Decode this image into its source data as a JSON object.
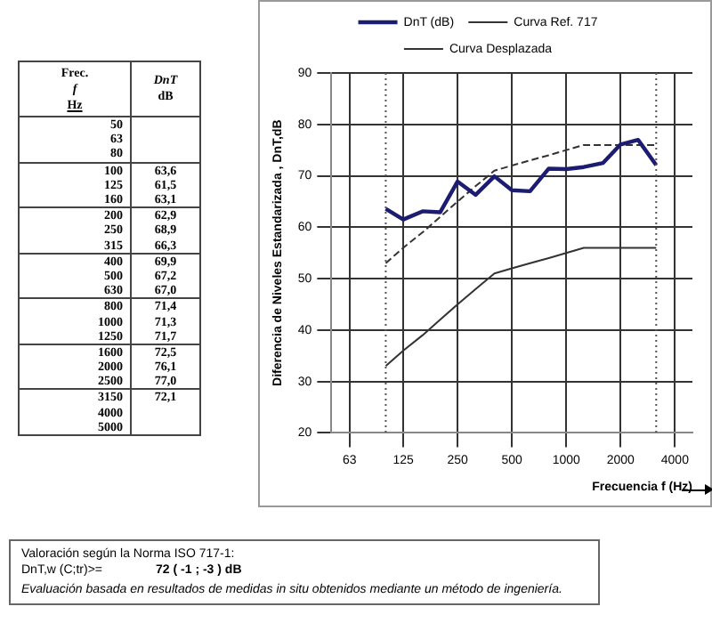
{
  "chart_data": [
    {
      "type": "other",
      "annotations": [
        "Frec.",
        "f",
        "Hz",
        "DnT",
        "dB"
      ],
      "categories": [
        "50",
        "63",
        "80",
        "100",
        "125",
        "160",
        "200",
        "250",
        "315",
        "400",
        "500",
        "630",
        "800",
        "1000",
        "1250",
        "1600",
        "2000",
        "2500",
        "3150",
        "4000",
        "5000"
      ],
      "value_labels": [
        null,
        null,
        null,
        "63,6",
        "61,5",
        "63,1",
        "62,9",
        "68,9",
        "66,3",
        "69,9",
        "67,2",
        "67,0",
        "71,4",
        "71,3",
        "71,7",
        "72,5",
        "76,1",
        "77,0",
        "72,1",
        null,
        null
      ]
    },
    {
      "type": "line",
      "x": [
        100,
        125,
        160,
        200,
        250,
        315,
        400,
        500,
        630,
        800,
        1000,
        1250,
        1600,
        2000,
        2500,
        3150
      ],
      "series": [
        {
          "name": "DnT (dB)",
          "color": "#1c1c72",
          "values": [
            63.6,
            61.5,
            63.1,
            62.9,
            68.9,
            66.3,
            69.9,
            67.2,
            67.0,
            71.4,
            71.3,
            71.7,
            72.5,
            76.1,
            77.0,
            72.1
          ]
        },
        {
          "name": "Curva Ref. 717",
          "color": "#333333",
          "line_style": "solid",
          "values": [
            33,
            36,
            39,
            42,
            45,
            48,
            51,
            52,
            53,
            54,
            55,
            56,
            56,
            56,
            56,
            56
          ]
        },
        {
          "name": "Curva Desplazada",
          "color": "#333333",
          "line_style": "dashed",
          "values": [
            53,
            56,
            59,
            62,
            65,
            68,
            71,
            72,
            73,
            74,
            75,
            76,
            76,
            76,
            76,
            76
          ]
        }
      ],
      "xlabel": "Frecuencia f (Hz)",
      "ylabel": "Diferencia de Niveles Estandarizada , DnT,dB",
      "log": "x",
      "xlim": [
        50,
        5000
      ],
      "xticks": [
        63,
        125,
        250,
        500,
        1000,
        2000,
        4000
      ],
      "ylim": [
        20,
        90
      ],
      "yticks": [
        20,
        30,
        40,
        50,
        60,
        70,
        80,
        90
      ],
      "grid": true,
      "legend": "top",
      "marker": "none",
      "ref_lines": [
        {
          "axis": "x",
          "value": 100,
          "line_style": "dotted",
          "color": "#555555"
        },
        {
          "axis": "x",
          "value": 3150,
          "line_style": "dotted",
          "color": "#555555"
        }
      ],
      "annotations": [
        "Valoración según la Norma  ISO 717-1:",
        "DnT,w (C;tr)>=",
        "72 (  -1 ;  -3  ) dB",
        "Evaluación basada en resultados de medidas in situ obtenidos mediante un método de ingeniería."
      ]
    }
  ]
}
